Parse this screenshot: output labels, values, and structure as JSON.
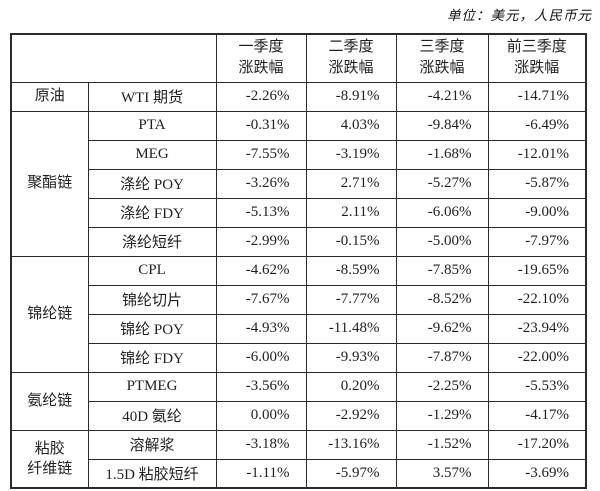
{
  "unit_label": "单位：美元，人民币元",
  "table": {
    "columns": [
      "一季度\n涨跌幅",
      "二季度\n涨跌幅",
      "三季度\n涨跌幅",
      "前三季度\n涨跌幅"
    ],
    "groups": [
      {
        "name": "原油",
        "rows": [
          {
            "product": "WTI 期货",
            "values": [
              "-2.26%",
              "-8.91%",
              "-4.21%",
              "-14.71%"
            ]
          }
        ]
      },
      {
        "name": "聚酯链",
        "rows": [
          {
            "product": "PTA",
            "values": [
              "-0.31%",
              "4.03%",
              "-9.84%",
              "-6.49%"
            ]
          },
          {
            "product": "MEG",
            "values": [
              "-7.55%",
              "-3.19%",
              "-1.68%",
              "-12.01%"
            ]
          },
          {
            "product": "涤纶 POY",
            "values": [
              "-3.26%",
              "2.71%",
              "-5.27%",
              "-5.87%"
            ]
          },
          {
            "product": "涤纶 FDY",
            "values": [
              "-5.13%",
              "2.11%",
              "-6.06%",
              "-9.00%"
            ]
          },
          {
            "product": "涤纶短纤",
            "values": [
              "-2.99%",
              "-0.15%",
              "-5.00%",
              "-7.97%"
            ]
          }
        ]
      },
      {
        "name": "锦纶链",
        "rows": [
          {
            "product": "CPL",
            "values": [
              "-4.62%",
              "-8.59%",
              "-7.85%",
              "-19.65%"
            ]
          },
          {
            "product": "锦纶切片",
            "values": [
              "-7.67%",
              "-7.77%",
              "-8.52%",
              "-22.10%"
            ]
          },
          {
            "product": "锦纶 POY",
            "values": [
              "-4.93%",
              "-11.48%",
              "-9.62%",
              "-23.94%"
            ]
          },
          {
            "product": "锦纶 FDY",
            "values": [
              "-6.00%",
              "-9.93%",
              "-7.87%",
              "-22.00%"
            ]
          }
        ]
      },
      {
        "name": "氨纶链",
        "rows": [
          {
            "product": "PTMEG",
            "values": [
              "-3.56%",
              "0.20%",
              "-2.25%",
              "-5.53%"
            ]
          },
          {
            "product": "40D 氨纶",
            "values": [
              "0.00%",
              "-2.92%",
              "-1.29%",
              "-4.17%"
            ]
          }
        ]
      },
      {
        "name": "粘胶\n纤维链",
        "rows": [
          {
            "product": "溶解浆",
            "values": [
              "-3.18%",
              "-13.16%",
              "-1.52%",
              "-17.20%"
            ]
          },
          {
            "product": "1.5D 粘胶短纤",
            "values": [
              "-1.11%",
              "-5.97%",
              "3.57%",
              "-3.69%"
            ]
          }
        ]
      }
    ]
  }
}
